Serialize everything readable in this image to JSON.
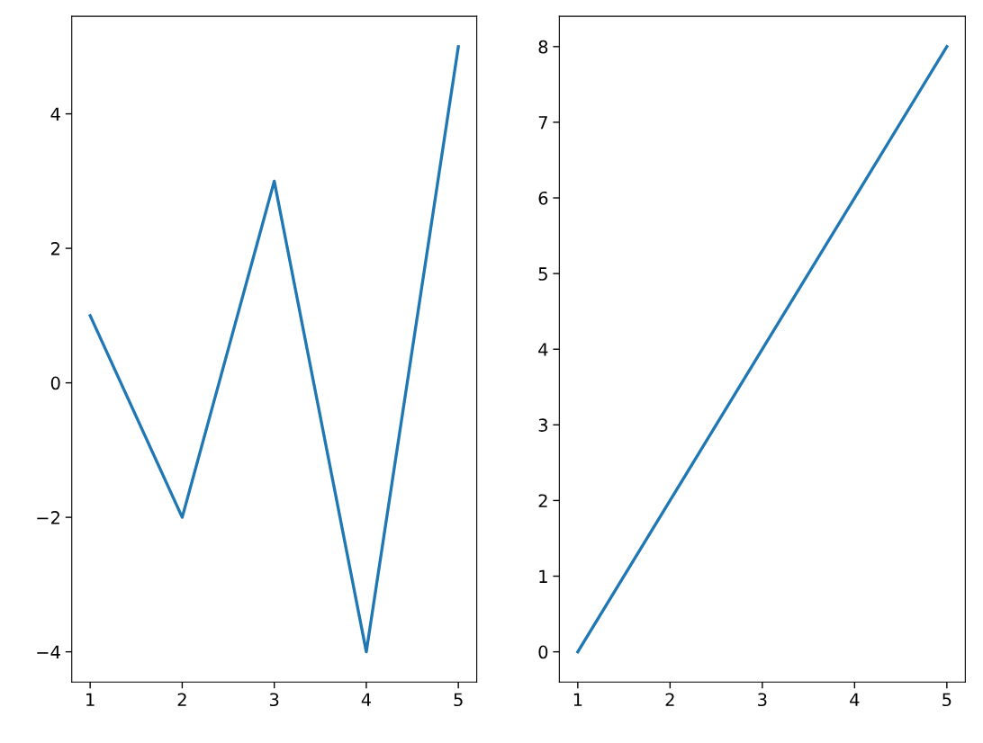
{
  "chart_data": [
    {
      "type": "line",
      "x": [
        1,
        2,
        3,
        4,
        5
      ],
      "xlim": [
        0.8,
        5.2
      ],
      "xticks": [
        1,
        2,
        3,
        4,
        5
      ],
      "ylim": [
        -4.45,
        5.45
      ],
      "yticks": [
        {
          "value": -4,
          "label": "−4"
        },
        {
          "value": -2,
          "label": "−2"
        },
        0,
        2,
        4
      ],
      "series": [
        {
          "color": "#1f77b4",
          "values": [
            1,
            -2,
            3,
            -4,
            5
          ]
        }
      ],
      "grid": false,
      "legend": false
    },
    {
      "type": "line",
      "x": [
        1,
        2,
        3,
        4,
        5
      ],
      "xlim": [
        0.8,
        5.2
      ],
      "xticks": [
        1,
        2,
        3,
        4,
        5
      ],
      "ylim": [
        -0.4,
        8.4
      ],
      "yticks": [
        0,
        1,
        2,
        3,
        4,
        5,
        6,
        7,
        8
      ],
      "series": [
        {
          "color": "#1f77b4",
          "values": [
            0,
            2,
            4,
            6,
            8
          ]
        }
      ],
      "grid": false,
      "legend": false
    }
  ]
}
